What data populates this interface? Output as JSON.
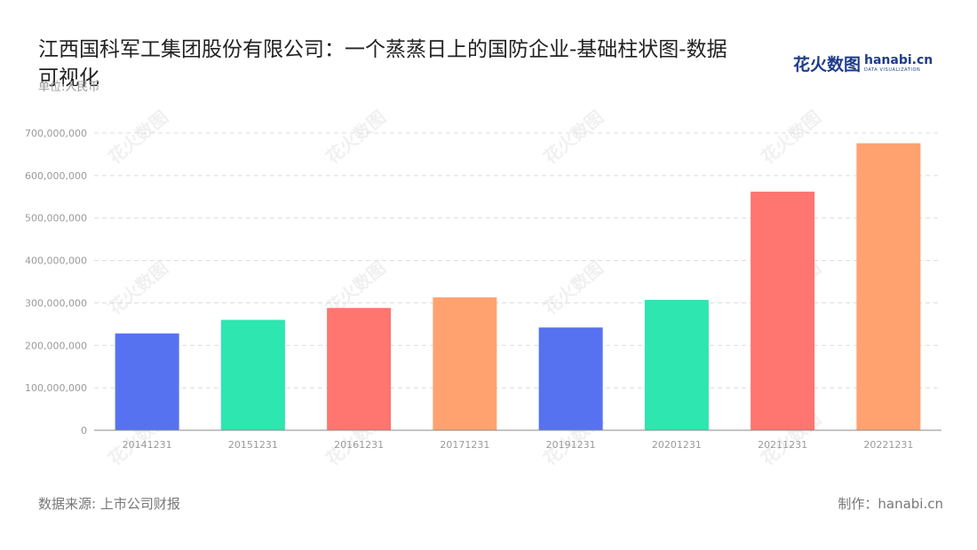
{
  "header": {
    "title": "江西国科军工集团股份有限公司：一个蒸蒸日上的国防企业-基础柱状图-数据可视化",
    "unit": "单位:人民币"
  },
  "logo": {
    "cn": "花火数图",
    "en": "hanabi.cn",
    "sub": "DATA VISUALIZATION",
    "color": "#1f3c88"
  },
  "footer": {
    "source": "数据来源: 上市公司财报",
    "credit": "制作：hanabi.cn"
  },
  "chart_data": {
    "type": "bar",
    "categories": [
      "20141231",
      "20151231",
      "20161231",
      "20171231",
      "20191231",
      "20201231",
      "20211231",
      "20221231"
    ],
    "values": [
      228000000,
      260000000,
      288000000,
      313000000,
      242000000,
      307000000,
      562000000,
      676000000
    ],
    "colors": [
      "#5772f0",
      "#2de6b0",
      "#ff7570",
      "#ffa26f",
      "#5772f0",
      "#2de6b0",
      "#ff7570",
      "#ffa26f"
    ],
    "ylim": [
      0,
      700000000
    ],
    "yticks": [
      "0",
      "100,000,000",
      "200,000,000",
      "300,000,000",
      "400,000,000",
      "500,000,000",
      "600,000,000",
      "700,000,000"
    ],
    "ytick_values": [
      0,
      100000000,
      200000000,
      300000000,
      400000000,
      500000000,
      600000000,
      700000000
    ],
    "grid": true,
    "watermark": "花火数图"
  }
}
